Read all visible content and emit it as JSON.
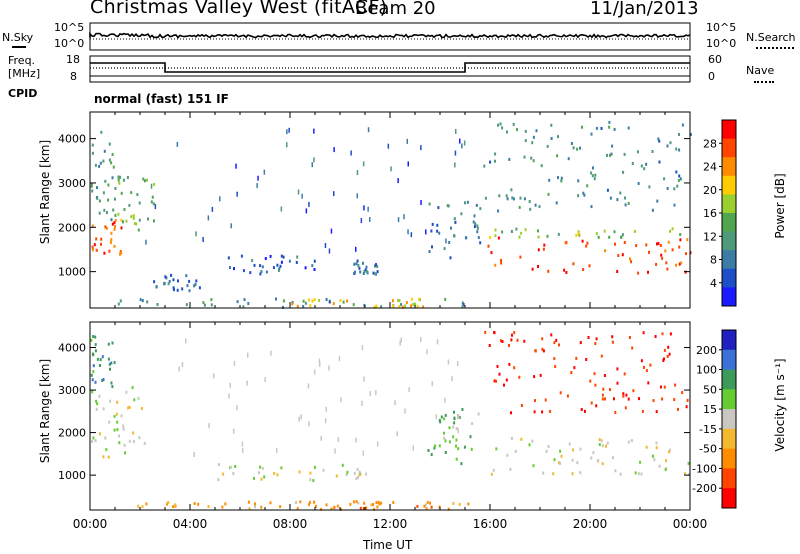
{
  "header": {
    "station": "Christmas Valley West (fitACF)",
    "beam": "Beam 20",
    "date": "11/Jan/2013"
  },
  "nsky_panel": {
    "left_label": "N.Sky",
    "right_label": "N.Search",
    "left_ticks": [
      "10^5",
      "10^0"
    ],
    "right_ticks": [
      "10^5",
      "10^0"
    ]
  },
  "freq_panel": {
    "left_label_1": "Freq.",
    "left_label_2": "[MHz]",
    "right_label": "Nave",
    "left_ticks": [
      "18",
      "8"
    ],
    "right_ticks": [
      "60",
      "0"
    ]
  },
  "cpid": {
    "label": "CPID",
    "value": "normal (fast) 151 IF"
  },
  "x_axis": {
    "ticks": [
      "00:00",
      "04:00",
      "08:00",
      "12:00",
      "16:00",
      "20:00",
      "00:00"
    ],
    "label": "Time UT"
  },
  "chart_data": [
    {
      "type": "heatmap",
      "panel": "power",
      "xlabel": "Time UT",
      "ylabel": "Slant Range [km]",
      "x_ticks": [
        "00:00",
        "04:00",
        "08:00",
        "12:00",
        "16:00",
        "20:00",
        "00:00"
      ],
      "xlim_hours": [
        0,
        24
      ],
      "y_ticks": [
        1000,
        2000,
        3000,
        4000
      ],
      "ylim": [
        180,
        4600
      ],
      "colorbar": {
        "label": "Power [dB]",
        "ticks": [
          "4",
          "8",
          "12",
          "16",
          "20",
          "24",
          "28"
        ],
        "range": [
          0,
          32
        ],
        "colors": [
          "#1b1bff",
          "#1e4fc8",
          "#3c7da8",
          "#4f9a7a",
          "#4fa64f",
          "#9bcf2e",
          "#ffcc00",
          "#ff8c00",
          "#ff4500",
          "#ff0000"
        ]
      },
      "regions": [
        {
          "t0": 0.0,
          "t1": 1.3,
          "r0": 1400,
          "r1": 2200,
          "value": 26
        },
        {
          "t0": 0.0,
          "t1": 1.0,
          "r0": 2200,
          "r1": 4200,
          "value": 12
        },
        {
          "t0": 0.8,
          "t1": 2.6,
          "r0": 1900,
          "r1": 3200,
          "value": 14
        },
        {
          "t0": 1.0,
          "t1": 15.5,
          "r0": 220,
          "r1": 420,
          "value": 10
        },
        {
          "t0": 8.0,
          "t1": 14.0,
          "r0": 220,
          "r1": 420,
          "value": 22
        },
        {
          "t0": 2.5,
          "t1": 4.5,
          "r0": 600,
          "r1": 950,
          "value": 6
        },
        {
          "t0": 5.5,
          "t1": 9.0,
          "r0": 950,
          "r1": 1450,
          "value": 6
        },
        {
          "t0": 10.5,
          "t1": 11.5,
          "r0": 900,
          "r1": 1300,
          "value": 8
        },
        {
          "t0": 13.5,
          "t1": 15.6,
          "r0": 1300,
          "r1": 2600,
          "value": 8
        },
        {
          "t0": 15.8,
          "t1": 24.0,
          "r0": 1000,
          "r1": 1800,
          "value": 28
        },
        {
          "t0": 15.8,
          "t1": 24.0,
          "r0": 1800,
          "r1": 2000,
          "value": 16
        },
        {
          "t0": 15.7,
          "t1": 24.0,
          "r0": 2400,
          "r1": 4400,
          "value": 10
        }
      ]
    },
    {
      "type": "heatmap",
      "panel": "velocity",
      "xlabel": "Time UT",
      "ylabel": "Slant Range [km]",
      "x_ticks": [
        "00:00",
        "04:00",
        "08:00",
        "12:00",
        "16:00",
        "20:00",
        "00:00"
      ],
      "xlim_hours": [
        0,
        24
      ],
      "y_ticks": [
        1000,
        2000,
        3000,
        4000
      ],
      "ylim": [
        180,
        4600
      ],
      "colorbar": {
        "label": "Velocity [m s⁻¹]",
        "ticks": [
          "200",
          "100",
          "50",
          "15",
          "-15",
          "-50",
          "-100",
          "-200"
        ],
        "colors": [
          "#2020c0",
          "#3a72d8",
          "#3e9a5a",
          "#66cc33",
          "#c8c8c0",
          "#f2b830",
          "#ff8c00",
          "#ff4500",
          "#ff0000"
        ]
      },
      "regions": [
        {
          "t0": 0.0,
          "t1": 2.2,
          "r0": 1400,
          "r1": 3100,
          "value": 0
        },
        {
          "t0": 0.0,
          "t1": 1.0,
          "r0": 3100,
          "r1": 4300,
          "value": 60
        },
        {
          "t0": 1.0,
          "t1": 15.5,
          "r0": 220,
          "r1": 420,
          "value": -40
        },
        {
          "t0": 8.0,
          "t1": 14.0,
          "r0": 220,
          "r1": 420,
          "value": -60
        },
        {
          "t0": 5.0,
          "t1": 11.5,
          "r0": 900,
          "r1": 1300,
          "value": 0
        },
        {
          "t0": 13.5,
          "t1": 15.6,
          "r0": 1300,
          "r1": 2600,
          "value": 30
        },
        {
          "t0": 15.8,
          "t1": 24.0,
          "r0": 1000,
          "r1": 1900,
          "value": 0
        },
        {
          "t0": 15.7,
          "t1": 24.0,
          "r0": 2500,
          "r1": 4400,
          "value": -150
        }
      ]
    }
  ]
}
